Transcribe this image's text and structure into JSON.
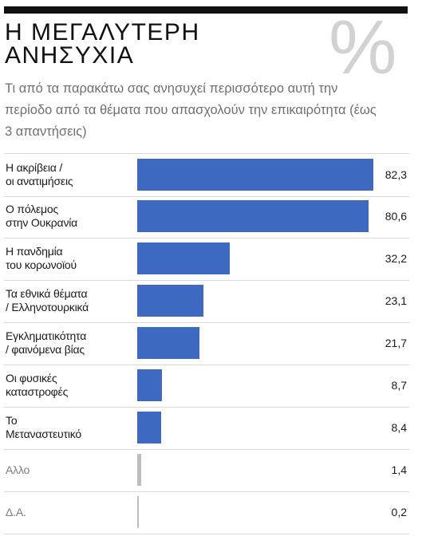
{
  "header": {
    "title": "Η ΜΕΓΑΛΥΤΕΡΗ\nΑΝΗΣΥΧΙΑ",
    "percent_symbol": "%",
    "subtitle": "Τι από τα παρακάτω σας ανησυχεί περισσότερο αυτή την περίοδο από τα θέματα που απασχολούν την επικαιρότητα (έως 3 απαντήσεις)"
  },
  "colors": {
    "bar": "#3d69c0",
    "bar_muted": "#bdbdbd"
  },
  "chart_data": {
    "type": "bar",
    "orientation": "horizontal",
    "title": "Η ΜΕΓΑΛΥΤΕΡΗ ΑΝΗΣΥΧΙΑ",
    "unit": "%",
    "xlim": [
      0,
      82.3
    ],
    "categories": [
      "Η ακρίβεια /\nοι ανατιμήσεις",
      "Ο πόλεμος\nστην Ουκρανία",
      "Η πανδημία\nτου κορωνοϊού",
      "Τα εθνικά θέματα\n/ Ελληνοτουρκικά",
      "Εγκληματικότητα\n/ φαινόμενα βίας",
      "Οι φυσικές\nκαταστροφές",
      "Το\nΜεταναστευτικό",
      "Αλλο",
      "Δ.Α."
    ],
    "values": [
      82.3,
      80.6,
      32.2,
      23.1,
      21.7,
      8.7,
      8.4,
      1.4,
      0.2
    ],
    "value_labels": [
      "82,3",
      "80,6",
      "32,2",
      "23,1",
      "21,7",
      "8,7",
      "8,4",
      "1,4",
      "0,2"
    ],
    "muted": [
      false,
      false,
      false,
      false,
      false,
      false,
      false,
      true,
      true
    ]
  }
}
